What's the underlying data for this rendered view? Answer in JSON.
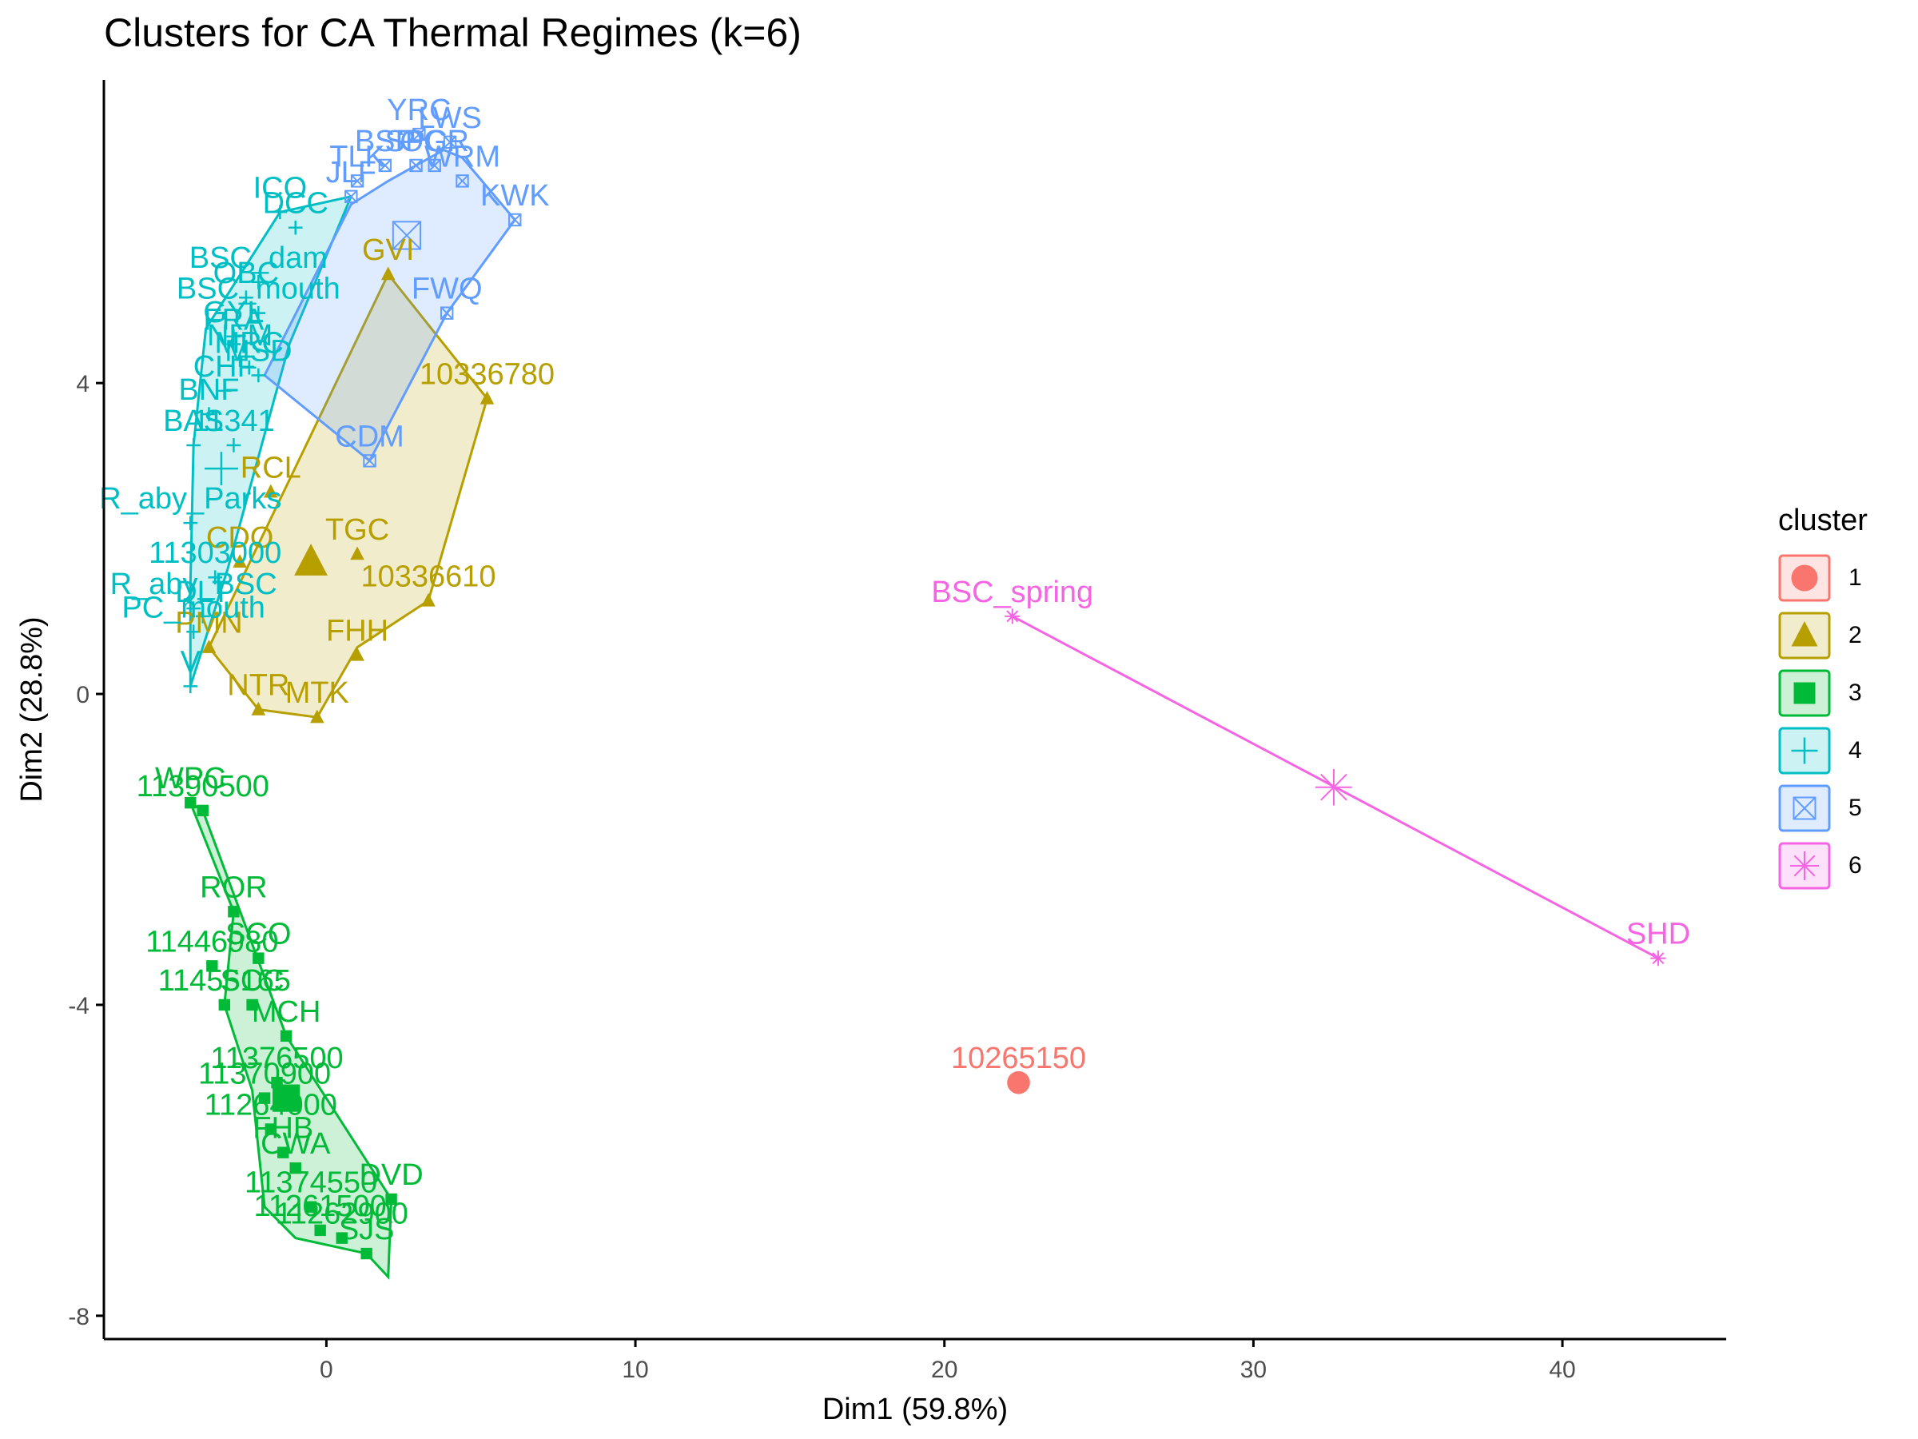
{
  "chart_data": {
    "type": "scatter",
    "title": "Clusters for CA Thermal Regimes (k=6)",
    "xlabel": "Dim1 (59.8%)",
    "ylabel": "Dim2 (28.8%)",
    "xlim": [
      -7.2,
      45.3
    ],
    "ylim": [
      -8.3,
      7.9
    ],
    "xticks": [
      0,
      10,
      20,
      30,
      40
    ],
    "yticks": [
      -8,
      -4,
      0,
      4
    ],
    "legend": {
      "title": "cluster",
      "placement": "right"
    },
    "grid": false,
    "clusters": [
      {
        "name": "1",
        "color": "#F8766D",
        "shape": "circle",
        "hull": [],
        "center": [
          22.4,
          -5.0
        ],
        "points": [
          {
            "label": "10265150",
            "x": 22.4,
            "y": -5.0
          }
        ]
      },
      {
        "name": "2",
        "color": "#B79F00",
        "shape": "triangle",
        "hull": [
          [
            -3.8,
            0.6
          ],
          [
            -2.2,
            -0.2
          ],
          [
            -0.3,
            -0.3
          ],
          [
            1.0,
            0.6
          ],
          [
            3.3,
            1.2
          ],
          [
            5.2,
            3.8
          ],
          [
            2.0,
            5.4
          ]
        ],
        "center": [
          -0.5,
          1.7
        ],
        "points": [
          {
            "label": "GVI",
            "x": 2.0,
            "y": 5.4
          },
          {
            "label": "10336780",
            "x": 5.2,
            "y": 3.8
          },
          {
            "label": "RCL",
            "x": -1.8,
            "y": 2.6
          },
          {
            "label": "TGC",
            "x": 1.0,
            "y": 1.8
          },
          {
            "label": "10336610",
            "x": 3.3,
            "y": 1.2
          },
          {
            "label": "FHH",
            "x": 1.0,
            "y": 0.5
          },
          {
            "label": "NTR",
            "x": -2.2,
            "y": -0.2
          },
          {
            "label": "MTK",
            "x": -0.3,
            "y": -0.3
          },
          {
            "label": "CDO",
            "x": -2.8,
            "y": 1.7
          },
          {
            "label": "PMN",
            "x": -3.8,
            "y": 0.6
          }
        ]
      },
      {
        "name": "3",
        "color": "#00BA38",
        "shape": "square",
        "hull": [
          [
            -4.4,
            -1.4
          ],
          [
            -3.0,
            -2.8
          ],
          [
            -3.3,
            -4.0
          ],
          [
            -2.4,
            -5.1
          ],
          [
            -2.0,
            -6.6
          ],
          [
            -1.0,
            -7.0
          ],
          [
            1.3,
            -7.2
          ],
          [
            2.0,
            -7.5
          ],
          [
            2.1,
            -6.5
          ],
          [
            -1.3,
            -4.4
          ],
          [
            -4.0,
            -1.5
          ]
        ],
        "center": [
          -1.3,
          -5.2
        ],
        "points": [
          {
            "label": "WPC",
            "x": -4.4,
            "y": -1.4
          },
          {
            "label": "11390500",
            "x": -4.0,
            "y": -1.5
          },
          {
            "label": "ROR",
            "x": -3.0,
            "y": -2.8
          },
          {
            "label": "SCO",
            "x": -2.2,
            "y": -3.4
          },
          {
            "label": "11446980",
            "x": -3.7,
            "y": -3.5
          },
          {
            "label": "SCC",
            "x": -2.4,
            "y": -4.0
          },
          {
            "label": "11455165",
            "x": -3.3,
            "y": -4.0
          },
          {
            "label": "MCH",
            "x": -1.3,
            "y": -4.4
          },
          {
            "label": "11376500",
            "x": -1.6,
            "y": -5.0
          },
          {
            "label": "11370900",
            "x": -2.0,
            "y": -5.2
          },
          {
            "label": "11264000",
            "x": -1.8,
            "y": -5.6
          },
          {
            "label": "FHB",
            "x": -1.4,
            "y": -5.9
          },
          {
            "label": "CWA",
            "x": -1.0,
            "y": -6.1
          },
          {
            "label": "DVD",
            "x": 2.1,
            "y": -6.5
          },
          {
            "label": "11374550",
            "x": -0.5,
            "y": -6.6
          },
          {
            "label": "11261500",
            "x": -0.2,
            "y": -6.9
          },
          {
            "label": "SJS",
            "x": 1.3,
            "y": -7.2
          },
          {
            "label": "11262900",
            "x": 0.5,
            "y": -7.0
          }
        ]
      },
      {
        "name": "4",
        "color": "#00BFC4",
        "shape": "cross",
        "hull": [
          [
            -4.4,
            0.1
          ],
          [
            -4.4,
            1.4
          ],
          [
            -4.3,
            3.2
          ],
          [
            -3.9,
            4.7
          ],
          [
            -1.5,
            6.2
          ],
          [
            0.8,
            6.4
          ],
          [
            -1.2,
            4.5
          ],
          [
            -3.2,
            1.6
          ]
        ],
        "center": [
          -3.4,
          2.9
        ],
        "points": [
          {
            "label": "ICO",
            "x": -1.5,
            "y": 6.2
          },
          {
            "label": "DCC",
            "x": -1.0,
            "y": 6.0
          },
          {
            "label": "BSC_dam",
            "x": -2.2,
            "y": 5.3
          },
          {
            "label": "OBC",
            "x": -2.6,
            "y": 5.1
          },
          {
            "label": "BSC_mouth",
            "x": -2.2,
            "y": 4.9
          },
          {
            "label": "GYL",
            "x": -3.0,
            "y": 4.6
          },
          {
            "label": "FRA",
            "x": -3.0,
            "y": 4.5
          },
          {
            "label": "NFM",
            "x": -2.8,
            "y": 4.3
          },
          {
            "label": "MRC",
            "x": -2.5,
            "y": 4.2
          },
          {
            "label": "MSD",
            "x": -2.2,
            "y": 4.1
          },
          {
            "label": "CHF",
            "x": -3.3,
            "y": 3.9
          },
          {
            "label": "BNF",
            "x": -3.8,
            "y": 3.6
          },
          {
            "label": "BAS",
            "x": -4.3,
            "y": 3.2
          },
          {
            "label": "11341",
            "x": -3.0,
            "y": 3.2
          },
          {
            "label": "R_aby_Parks",
            "x": -4.4,
            "y": 2.2
          },
          {
            "label": "11303000",
            "x": -3.6,
            "y": 1.5
          },
          {
            "label": "R_aby_BSC",
            "x": -4.3,
            "y": 1.1
          },
          {
            "label": "DLT",
            "x": -4.0,
            "y": 1.0
          },
          {
            "label": "PC_mouth",
            "x": -4.3,
            "y": 0.8
          },
          {
            "label": "V",
            "x": -4.4,
            "y": 0.1
          }
        ]
      },
      {
        "name": "5",
        "color": "#619CFF",
        "shape": "boxcross",
        "hull": [
          [
            -2.0,
            4.1
          ],
          [
            1.4,
            3.0
          ],
          [
            3.9,
            4.9
          ],
          [
            6.1,
            6.1
          ],
          [
            4.4,
            6.9
          ],
          [
            3.8,
            7.0
          ],
          [
            2.0,
            6.6
          ],
          [
            0.8,
            6.3
          ]
        ],
        "center": [
          2.6,
          5.9
        ],
        "points": [
          {
            "label": "YRC",
            "x": 3.0,
            "y": 7.2
          },
          {
            "label": "LWS",
            "x": 4.0,
            "y": 7.1
          },
          {
            "label": "BSP",
            "x": 1.9,
            "y": 6.8
          },
          {
            "label": "SPC",
            "x": 2.9,
            "y": 6.8
          },
          {
            "label": "OGR",
            "x": 3.5,
            "y": 6.8
          },
          {
            "label": "TLK",
            "x": 1.0,
            "y": 6.6
          },
          {
            "label": "WRM",
            "x": 4.4,
            "y": 6.6
          },
          {
            "label": "JLF",
            "x": 0.8,
            "y": 6.4
          },
          {
            "label": "KWK",
            "x": 6.1,
            "y": 6.1
          },
          {
            "label": "FWQ",
            "x": 3.9,
            "y": 4.9
          },
          {
            "label": "CDM",
            "x": 1.4,
            "y": 3.0
          }
        ]
      },
      {
        "name": "6",
        "color": "#F564E3",
        "shape": "star",
        "hull": [
          [
            22.2,
            1.0
          ],
          [
            43.1,
            -3.4
          ]
        ],
        "center": [
          32.6,
          -1.2
        ],
        "points": [
          {
            "label": "BSC_spring",
            "x": 22.2,
            "y": 1.0
          },
          {
            "label": "SHD",
            "x": 43.1,
            "y": -3.4
          }
        ]
      }
    ]
  }
}
